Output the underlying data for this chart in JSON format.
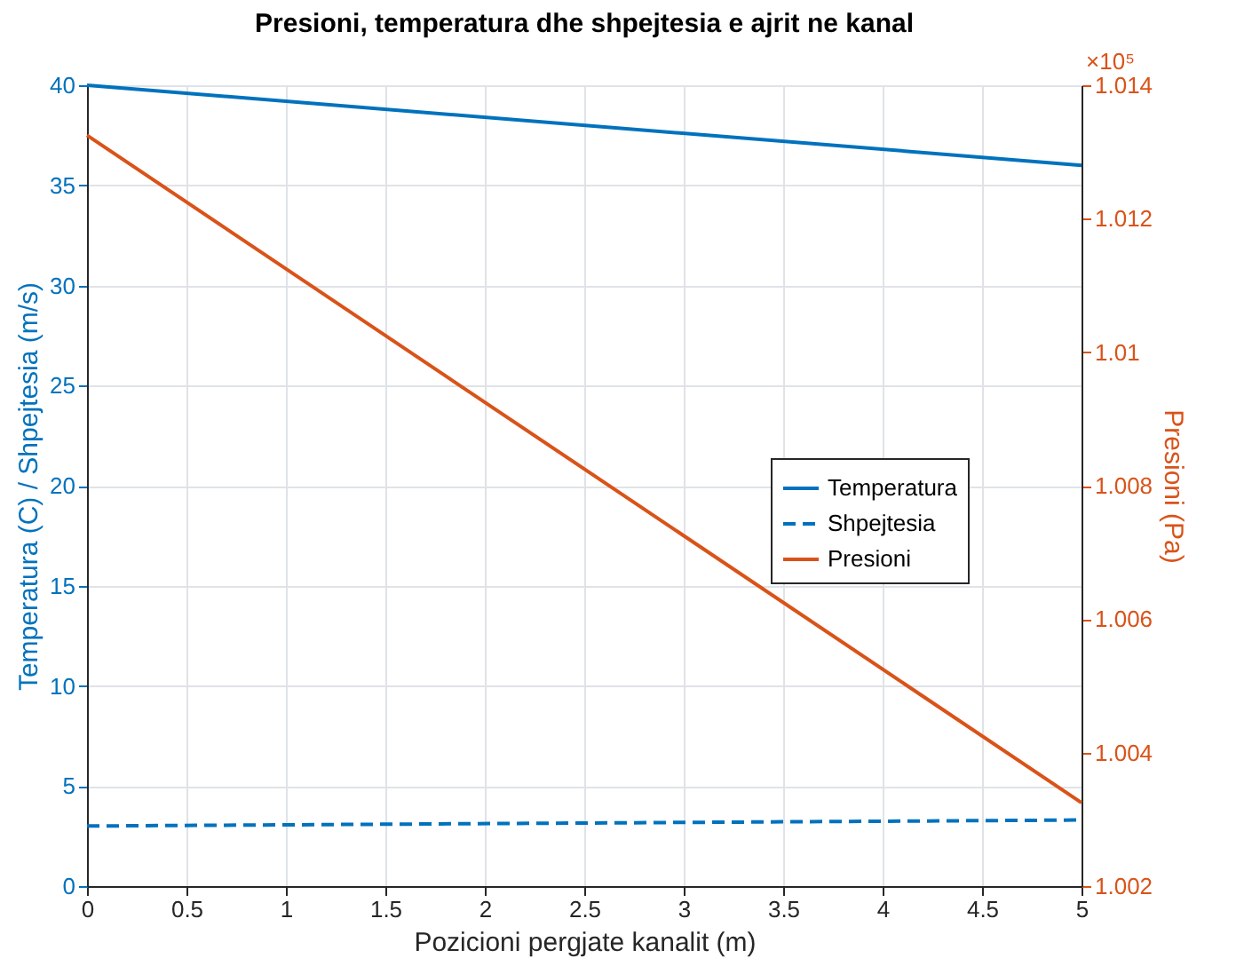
{
  "chart_data": {
    "type": "line",
    "title": "Presioni, temperatura dhe shpejtesia e ajrit ne kanal",
    "xlabel": "Pozicioni pergjate kanalit (m)",
    "ylabel": "Temperatura (C) / Shpejtesia (m/s)",
    "y2label": "Presioni (Pa)",
    "x": [
      0,
      5
    ],
    "series": [
      {
        "name": "Temperatura",
        "color": "#0072bd",
        "values": [
          40,
          36
        ],
        "line_style": "solid"
      },
      {
        "name": "Shpejtesia",
        "color": "#0072bd",
        "values": [
          3,
          3.3
        ],
        "line_style": "dashed"
      },
      {
        "name": "Presioni",
        "color": "#d95319",
        "values": [
          1.01325,
          1.00325
        ],
        "line_style": "solid",
        "axis": "y2"
      }
    ],
    "xlim": [
      0,
      5
    ],
    "xticks": [
      0,
      0.5,
      1,
      1.5,
      2,
      2.5,
      3,
      3.5,
      4,
      4.5,
      5
    ],
    "ylim": [
      0,
      40
    ],
    "yticks": [
      0,
      5,
      10,
      15,
      20,
      25,
      30,
      35,
      40
    ],
    "y2lim": [
      1.002,
      1.014
    ],
    "y2ticks": [
      1.002,
      1.004,
      1.006,
      1.008,
      1.01,
      1.012,
      1.014
    ],
    "annotations": [
      "×10⁵"
    ],
    "grid": true,
    "legend": "right",
    "marker": "none"
  }
}
